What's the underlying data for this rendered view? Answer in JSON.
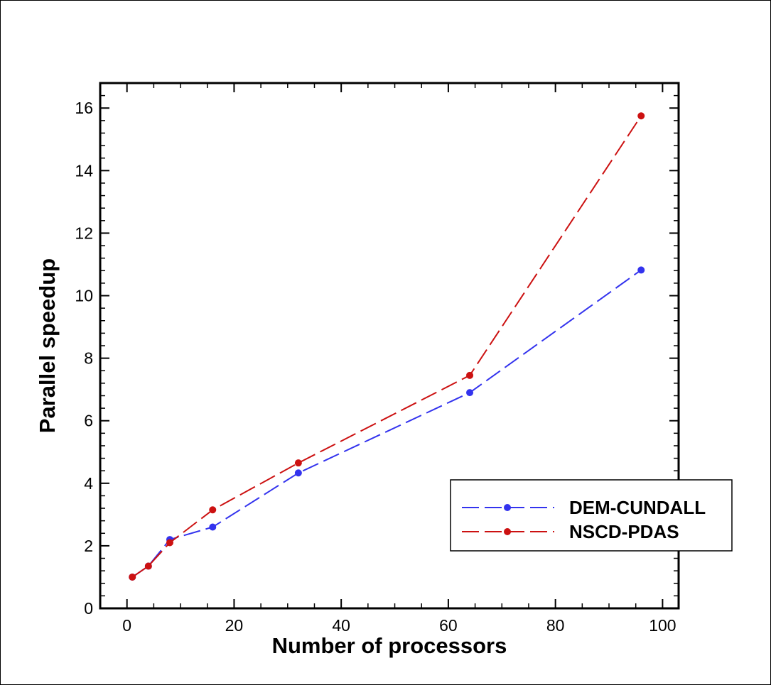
{
  "chart_data": {
    "type": "line",
    "xlabel": "Number of processors",
    "ylabel": "Parallel speedup",
    "xlim": [
      -5,
      103
    ],
    "ylim": [
      0,
      16.8
    ],
    "xticks": [
      0,
      20,
      40,
      60,
      80,
      100
    ],
    "yticks": [
      0,
      2,
      4,
      6,
      8,
      10,
      12,
      14,
      16
    ],
    "xminor_step": 5,
    "yminor_step": 0.4,
    "grid": false,
    "legend_position": "lower-right",
    "series": [
      {
        "name": "DEM-CUNDALL",
        "color": "#3333ee",
        "x": [
          1,
          4,
          8,
          16,
          32,
          64,
          96
        ],
        "y": [
          1.0,
          1.35,
          2.2,
          2.6,
          4.33,
          6.9,
          10.82
        ]
      },
      {
        "name": "NSCD-PDAS",
        "color": "#cc1111",
        "x": [
          1,
          4,
          8,
          16,
          32,
          64,
          96
        ],
        "y": [
          1.0,
          1.35,
          2.1,
          3.15,
          4.65,
          7.45,
          15.75
        ]
      }
    ]
  }
}
